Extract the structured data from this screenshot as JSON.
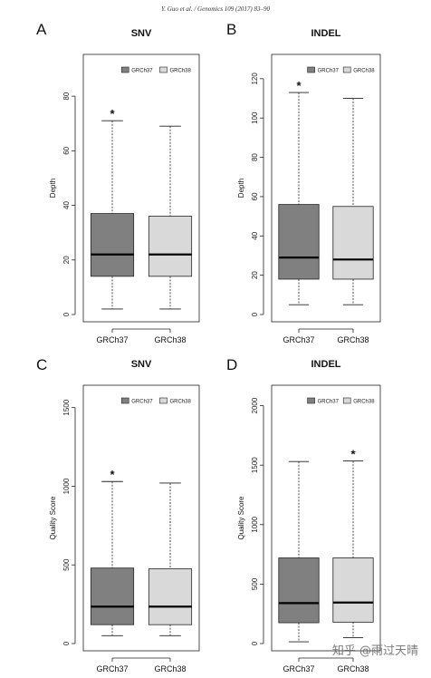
{
  "citation": "Y. Guo et al. / Genomics 109 (2017) 83–90",
  "watermark": "知乎 @雨过天晴",
  "panels": [
    {
      "letter": "A"
    },
    {
      "letter": "B"
    },
    {
      "letter": "C"
    },
    {
      "letter": "D"
    }
  ],
  "chart_data": [
    {
      "type": "box",
      "title": "SNV",
      "ylabel": "Depth",
      "ylim": [
        0,
        90
      ],
      "yticks": [
        0,
        20,
        40,
        60,
        80
      ],
      "categories": [
        "GRCh37",
        "GRCh38"
      ],
      "legend": {
        "position": "top-right",
        "entries": [
          "GRCh37",
          "GRCh38"
        ]
      },
      "series_colors": [
        "#808080",
        "#d9d9d9"
      ],
      "boxes": [
        {
          "name": "GRCh37",
          "min": 2,
          "q1": 14,
          "median": 22,
          "q3": 37,
          "max": 71
        },
        {
          "name": "GRCh38",
          "min": 2,
          "q1": 14,
          "median": 22,
          "q3": 36,
          "max": 69
        }
      ],
      "annotations": [
        {
          "category": "GRCh37",
          "text": "*"
        }
      ]
    },
    {
      "type": "box",
      "title": "INDEL",
      "ylabel": "Depth",
      "ylim": [
        0,
        125
      ],
      "yticks": [
        0,
        20,
        40,
        60,
        80,
        100,
        120
      ],
      "categories": [
        "GRCh37",
        "GRCh38"
      ],
      "legend": {
        "position": "top-right",
        "entries": [
          "GRCh37",
          "GRCh38"
        ]
      },
      "series_colors": [
        "#808080",
        "#d9d9d9"
      ],
      "boxes": [
        {
          "name": "GRCh37",
          "min": 5,
          "q1": 18,
          "median": 29,
          "q3": 56,
          "max": 113
        },
        {
          "name": "GRCh38",
          "min": 5,
          "q1": 18,
          "median": 28,
          "q3": 55,
          "max": 110
        }
      ],
      "annotations": [
        {
          "category": "GRCh37",
          "text": "*"
        }
      ]
    },
    {
      "type": "box",
      "title": "SNV",
      "ylabel": "Quality Score",
      "ylim": [
        0,
        1550
      ],
      "yticks": [
        0,
        500,
        1000,
        1500
      ],
      "categories": [
        "GRCh37",
        "GRCh38"
      ],
      "legend": {
        "position": "top-right",
        "entries": [
          "GRCh37",
          "GRCh38"
        ]
      },
      "series_colors": [
        "#808080",
        "#d9d9d9"
      ],
      "boxes": [
        {
          "name": "GRCh37",
          "min": 50,
          "q1": 120,
          "median": 235,
          "q3": 480,
          "max": 1030
        },
        {
          "name": "GRCh38",
          "min": 50,
          "q1": 120,
          "median": 235,
          "q3": 475,
          "max": 1020
        }
      ],
      "annotations": [
        {
          "category": "GRCh37",
          "text": "*"
        }
      ]
    },
    {
      "type": "box",
      "title": "INDEL",
      "ylabel": "Quality Score",
      "ylim": [
        0,
        2050
      ],
      "yticks": [
        0,
        500,
        1000,
        1500,
        2000
      ],
      "categories": [
        "GRCh37",
        "GRCh38"
      ],
      "legend": {
        "position": "top-right",
        "entries": [
          "GRCh37",
          "GRCh38"
        ]
      },
      "series_colors": [
        "#808080",
        "#d9d9d9"
      ],
      "boxes": [
        {
          "name": "GRCh37",
          "min": 15,
          "q1": 175,
          "median": 340,
          "q3": 720,
          "max": 1530
        },
        {
          "name": "GRCh38",
          "min": 50,
          "q1": 180,
          "median": 345,
          "q3": 720,
          "max": 1535
        }
      ],
      "annotations": [
        {
          "category": "GRCh38",
          "text": "*"
        }
      ]
    }
  ]
}
